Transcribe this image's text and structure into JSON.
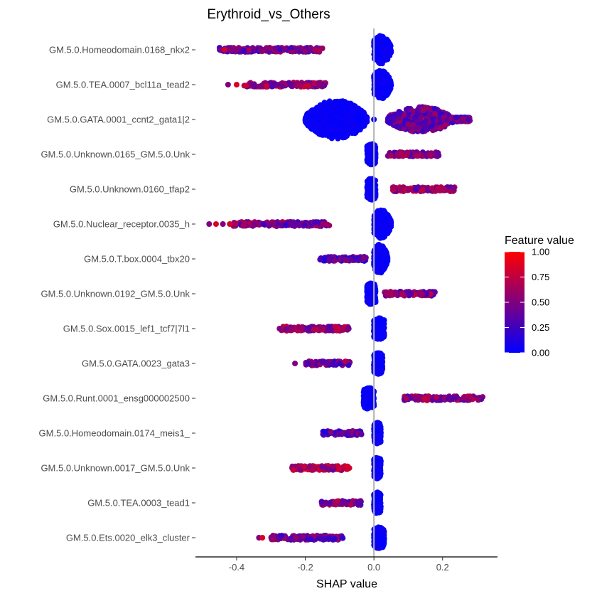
{
  "chart_data": {
    "type": "scatter",
    "subtype": "shap-beeswarm",
    "title": "Erythroid_vs_Others",
    "xlabel": "SHAP value",
    "ylabel": "",
    "xlim": [
      -0.52,
      0.36
    ],
    "xticks": [
      -0.4,
      -0.2,
      0.0,
      0.2
    ],
    "xtick_labels": [
      "-0.4",
      "-0.2",
      "0.0",
      "0.2"
    ],
    "reference_line_x": 0.0,
    "grid": false,
    "colorbar": {
      "title": "Feature value",
      "min": 0.0,
      "max": 1.0,
      "ticks": [
        1.0,
        0.75,
        0.5,
        0.25,
        0.0
      ],
      "tick_labels": [
        "1.00",
        "0.75",
        "0.50",
        "0.25",
        "0.00"
      ],
      "low_color": "#0000ff",
      "high_color": "#ff0000",
      "placement": "right"
    },
    "features": [
      {
        "name": "GM.5.0.Homeodomain.0168_nkx2",
        "low": {
          "min": 0.0,
          "max": 0.05,
          "shape": "blob"
        },
        "high": {
          "min": -0.45,
          "max": -0.15,
          "value": 0.45,
          "gap_points": [
            -0.445,
            -0.435,
            -0.4
          ]
        }
      },
      {
        "name": "GM.5.0.TEA.0007_bcl11a_tead2",
        "low": {
          "min": 0.0,
          "max": 0.05,
          "shape": "blob"
        },
        "high": {
          "min": -0.38,
          "max": -0.14,
          "value": 0.55,
          "gap_points": [
            -0.425,
            -0.4
          ]
        }
      },
      {
        "name": "GM.5.0.GATA.0001_ccnt2_gata1|2",
        "low": {
          "min": -0.2,
          "max": -0.02,
          "shape": "big_blob"
        },
        "low_gap_points": [
          0.0
        ],
        "high": {
          "min": 0.04,
          "max": 0.28,
          "value": 0.4,
          "shape": "wide_blob"
        }
      },
      {
        "name": "GM.5.0.Unknown.0165_GM.5.0.Unk",
        "low": {
          "min": -0.02,
          "max": 0.005,
          "shape": "thin"
        },
        "high": {
          "min": 0.04,
          "max": 0.19,
          "value": 0.5
        }
      },
      {
        "name": "GM.5.0.Unknown.0160_tfap2",
        "low": {
          "min": -0.02,
          "max": 0.005,
          "shape": "thin"
        },
        "high": {
          "min": 0.055,
          "max": 0.235,
          "value": 0.55
        }
      },
      {
        "name": "GM.5.0.Nuclear_receptor.0035_h",
        "low": {
          "min": 0.0,
          "max": 0.05,
          "shape": "blob"
        },
        "high": {
          "min": -0.41,
          "max": -0.13,
          "value": 0.45,
          "gap_points": [
            -0.48,
            -0.46,
            -0.44,
            -0.42
          ]
        }
      },
      {
        "name": "GM.5.0.T.box.0004_tbx20",
        "low": {
          "min": 0.0,
          "max": 0.04,
          "shape": "blob"
        },
        "high": {
          "min": -0.16,
          "max": -0.02,
          "value": 0.35
        }
      },
      {
        "name": "GM.5.0.Unknown.0192_GM.5.0.Unk",
        "low": {
          "min": -0.02,
          "max": 0.005,
          "shape": "thin"
        },
        "high": {
          "min": 0.03,
          "max": 0.18,
          "value": 0.5
        }
      },
      {
        "name": "GM.5.0.Sox.0015_lef1_tcf7|7l1",
        "low": {
          "min": 0.0,
          "max": 0.03,
          "shape": "thin"
        },
        "high": {
          "min": -0.27,
          "max": -0.07,
          "value": 0.55,
          "gap_points": [
            -0.275
          ]
        }
      },
      {
        "name": "GM.5.0.GATA.0023_gata3",
        "low": {
          "min": 0.0,
          "max": 0.025,
          "shape": "thin"
        },
        "high": {
          "min": -0.2,
          "max": -0.07,
          "value": 0.45,
          "gap_points": [
            -0.23
          ]
        }
      },
      {
        "name": "GM.5.0.Runt.0001_ensg000002500",
        "low": {
          "min": -0.03,
          "max": 0.0,
          "shape": "thin"
        },
        "high": {
          "min": 0.085,
          "max": 0.32,
          "value": 0.5
        }
      },
      {
        "name": "GM.5.0.Homeodomain.0174_meis1_",
        "low": {
          "min": 0.0,
          "max": 0.02,
          "shape": "thin"
        },
        "high": {
          "min": -0.15,
          "max": -0.035,
          "value": 0.35
        }
      },
      {
        "name": "GM.5.0.Unknown.0017_GM.5.0.Unk",
        "low": {
          "min": 0.0,
          "max": 0.02,
          "shape": "thin"
        },
        "high": {
          "min": -0.24,
          "max": -0.07,
          "value": 0.6
        }
      },
      {
        "name": "GM.5.0.TEA.0003_tead1",
        "low": {
          "min": 0.0,
          "max": 0.02,
          "shape": "thin"
        },
        "high": {
          "min": -0.155,
          "max": -0.035,
          "value": 0.5
        }
      },
      {
        "name": "GM.5.0.Ets.0020_elk3_cluster",
        "low": {
          "min": 0.0,
          "max": 0.03,
          "shape": "thin"
        },
        "high": {
          "min": -0.3,
          "max": -0.09,
          "value": 0.4,
          "gap_points": [
            -0.335,
            -0.325
          ]
        }
      }
    ]
  }
}
